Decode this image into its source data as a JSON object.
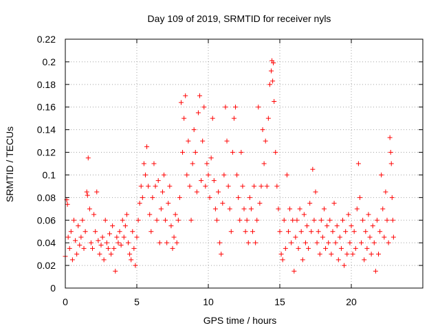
{
  "chart_data": {
    "type": "scatter",
    "title": "Day 109 of 2019, SRMTID for receiver nyls",
    "xlabel": "GPS time / hours",
    "ylabel": "SRMTID / TECUs",
    "xlim": [
      0,
      25
    ],
    "ylim": [
      0,
      0.22
    ],
    "x_ticks": [
      0,
      5,
      10,
      15,
      20
    ],
    "x_tick_labels": [
      "0",
      "5",
      "10",
      "15",
      "20"
    ],
    "y_ticks": [
      0,
      0.02,
      0.04,
      0.06,
      0.08,
      0.1,
      0.12,
      0.14,
      0.16,
      0.18,
      0.2,
      0.22
    ],
    "y_tick_labels": [
      "0",
      "0.02",
      "0.04",
      "0.06",
      "0.08",
      "0.1",
      "0.12",
      "0.14",
      "0.16",
      "0.18",
      "0.2",
      "0.22"
    ],
    "grid": true,
    "marker": "+",
    "color": "#ff0000",
    "series": [
      {
        "name": "SRMTID",
        "points": [
          [
            0.0,
            0.028
          ],
          [
            0.1,
            0.078
          ],
          [
            0.15,
            0.074
          ],
          [
            0.2,
            0.045
          ],
          [
            0.3,
            0.035
          ],
          [
            0.4,
            0.05
          ],
          [
            0.5,
            0.025
          ],
          [
            0.6,
            0.06
          ],
          [
            0.7,
            0.042
          ],
          [
            0.8,
            0.03
          ],
          [
            0.9,
            0.055
          ],
          [
            1.0,
            0.038
          ],
          [
            1.1,
            0.045
          ],
          [
            1.2,
            0.06
          ],
          [
            1.3,
            0.035
          ],
          [
            1.4,
            0.05
          ],
          [
            1.5,
            0.085
          ],
          [
            1.55,
            0.082
          ],
          [
            1.6,
            0.115
          ],
          [
            1.7,
            0.07
          ],
          [
            1.8,
            0.04
          ],
          [
            1.9,
            0.035
          ],
          [
            2.0,
            0.065
          ],
          [
            2.1,
            0.05
          ],
          [
            2.2,
            0.085
          ],
          [
            2.3,
            0.042
          ],
          [
            2.4,
            0.03
          ],
          [
            2.5,
            0.038
          ],
          [
            2.6,
            0.045
          ],
          [
            2.7,
            0.025
          ],
          [
            2.8,
            0.06
          ],
          [
            2.9,
            0.04
          ],
          [
            3.0,
            0.035
          ],
          [
            3.1,
            0.048
          ],
          [
            3.2,
            0.03
          ],
          [
            3.3,
            0.055
          ],
          [
            3.4,
            0.035
          ],
          [
            3.5,
            0.015
          ],
          [
            3.6,
            0.045
          ],
          [
            3.7,
            0.04
          ],
          [
            3.8,
            0.05
          ],
          [
            3.9,
            0.038
          ],
          [
            4.0,
            0.06
          ],
          [
            4.1,
            0.045
          ],
          [
            4.2,
            0.055
          ],
          [
            4.3,
            0.065
          ],
          [
            4.4,
            0.04
          ],
          [
            4.5,
            0.03
          ],
          [
            4.6,
            0.025
          ],
          [
            4.7,
            0.05
          ],
          [
            4.8,
            0.035
          ],
          [
            4.9,
            0.02
          ],
          [
            5.0,
            0.045
          ],
          [
            5.1,
            0.06
          ],
          [
            5.2,
            0.075
          ],
          [
            5.3,
            0.09
          ],
          [
            5.4,
            0.08
          ],
          [
            5.5,
            0.11
          ],
          [
            5.6,
            0.1
          ],
          [
            5.7,
            0.125
          ],
          [
            5.8,
            0.09
          ],
          [
            5.9,
            0.065
          ],
          [
            6.0,
            0.05
          ],
          [
            6.1,
            0.08
          ],
          [
            6.2,
            0.11
          ],
          [
            6.3,
            0.09
          ],
          [
            6.4,
            0.06
          ],
          [
            6.5,
            0.095
          ],
          [
            6.6,
            0.04
          ],
          [
            6.7,
            0.07
          ],
          [
            6.8,
            0.085
          ],
          [
            6.9,
            0.1
          ],
          [
            7.0,
            0.06
          ],
          [
            7.1,
            0.04
          ],
          [
            7.2,
            0.075
          ],
          [
            7.3,
            0.09
          ],
          [
            7.4,
            0.055
          ],
          [
            7.5,
            0.035
          ],
          [
            7.6,
            0.045
          ],
          [
            7.7,
            0.065
          ],
          [
            7.8,
            0.04
          ],
          [
            7.9,
            0.06
          ],
          [
            8.0,
            0.08
          ],
          [
            8.1,
            0.164
          ],
          [
            8.2,
            0.12
          ],
          [
            8.3,
            0.15
          ],
          [
            8.4,
            0.17
          ],
          [
            8.5,
            0.1
          ],
          [
            8.6,
            0.13
          ],
          [
            8.7,
            0.09
          ],
          [
            8.8,
            0.06
          ],
          [
            8.9,
            0.11
          ],
          [
            9.0,
            0.14
          ],
          [
            9.1,
            0.12
          ],
          [
            9.2,
            0.085
          ],
          [
            9.3,
            0.155
          ],
          [
            9.4,
            0.17
          ],
          [
            9.5,
            0.095
          ],
          [
            9.6,
            0.13
          ],
          [
            9.7,
            0.16
          ],
          [
            9.8,
            0.09
          ],
          [
            9.9,
            0.11
          ],
          [
            10.0,
            0.1
          ],
          [
            10.1,
            0.08
          ],
          [
            10.2,
            0.115
          ],
          [
            10.3,
            0.15
          ],
          [
            10.4,
            0.095
          ],
          [
            10.5,
            0.07
          ],
          [
            10.6,
            0.06
          ],
          [
            10.7,
            0.085
          ],
          [
            10.8,
            0.04
          ],
          [
            10.9,
            0.03
          ],
          [
            11.0,
            0.075
          ],
          [
            11.1,
            0.1
          ],
          [
            11.2,
            0.16
          ],
          [
            11.3,
            0.13
          ],
          [
            11.4,
            0.09
          ],
          [
            11.5,
            0.07
          ],
          [
            11.6,
            0.05
          ],
          [
            11.7,
            0.12
          ],
          [
            11.8,
            0.15
          ],
          [
            11.9,
            0.16
          ],
          [
            12.0,
            0.1
          ],
          [
            12.1,
            0.08
          ],
          [
            12.2,
            0.06
          ],
          [
            12.3,
            0.12
          ],
          [
            12.4,
            0.09
          ],
          [
            12.5,
            0.07
          ],
          [
            12.6,
            0.05
          ],
          [
            12.7,
            0.06
          ],
          [
            12.8,
            0.04
          ],
          [
            12.9,
            0.08
          ],
          [
            13.0,
            0.07
          ],
          [
            13.1,
            0.05
          ],
          [
            13.2,
            0.09
          ],
          [
            13.3,
            0.04
          ],
          [
            13.4,
            0.06
          ],
          [
            13.5,
            0.16
          ],
          [
            13.6,
            0.075
          ],
          [
            13.7,
            0.09
          ],
          [
            13.8,
            0.14
          ],
          [
            13.9,
            0.11
          ],
          [
            14.0,
            0.13
          ],
          [
            14.1,
            0.09
          ],
          [
            14.2,
            0.15
          ],
          [
            14.3,
            0.18
          ],
          [
            14.4,
            0.192
          ],
          [
            14.45,
            0.201
          ],
          [
            14.5,
            0.183
          ],
          [
            14.55,
            0.199
          ],
          [
            14.6,
            0.165
          ],
          [
            14.7,
            0.12
          ],
          [
            14.8,
            0.09
          ],
          [
            14.9,
            0.07
          ],
          [
            15.0,
            0.05
          ],
          [
            15.1,
            0.03
          ],
          [
            15.2,
            0.025
          ],
          [
            15.3,
            0.06
          ],
          [
            15.4,
            0.035
          ],
          [
            15.5,
            0.1
          ],
          [
            15.6,
            0.05
          ],
          [
            15.7,
            0.07
          ],
          [
            15.8,
            0.04
          ],
          [
            15.9,
            0.06
          ],
          [
            16.0,
            0.015
          ],
          [
            16.1,
            0.045
          ],
          [
            16.2,
            0.06
          ],
          [
            16.3,
            0.035
          ],
          [
            16.4,
            0.07
          ],
          [
            16.5,
            0.05
          ],
          [
            16.6,
            0.025
          ],
          [
            16.7,
            0.065
          ],
          [
            16.8,
            0.04
          ],
          [
            16.9,
            0.055
          ],
          [
            17.0,
            0.035
          ],
          [
            17.1,
            0.075
          ],
          [
            17.2,
            0.05
          ],
          [
            17.3,
            0.105
          ],
          [
            17.4,
            0.06
          ],
          [
            17.5,
            0.085
          ],
          [
            17.6,
            0.04
          ],
          [
            17.7,
            0.05
          ],
          [
            17.8,
            0.03
          ],
          [
            17.9,
            0.06
          ],
          [
            18.0,
            0.045
          ],
          [
            18.1,
            0.07
          ],
          [
            18.2,
            0.035
          ],
          [
            18.3,
            0.055
          ],
          [
            18.4,
            0.04
          ],
          [
            18.5,
            0.06
          ],
          [
            18.6,
            0.03
          ],
          [
            18.7,
            0.05
          ],
          [
            18.8,
            0.075
          ],
          [
            18.9,
            0.04
          ],
          [
            19.0,
            0.055
          ],
          [
            19.1,
            0.025
          ],
          [
            19.2,
            0.045
          ],
          [
            19.3,
            0.035
          ],
          [
            19.4,
            0.06
          ],
          [
            19.5,
            0.02
          ],
          [
            19.6,
            0.05
          ],
          [
            19.7,
            0.03
          ],
          [
            19.8,
            0.065
          ],
          [
            19.9,
            0.04
          ],
          [
            20.0,
            0.055
          ],
          [
            20.1,
            0.03
          ],
          [
            20.2,
            0.05
          ],
          [
            20.3,
            0.035
          ],
          [
            20.4,
            0.07
          ],
          [
            20.5,
            0.11
          ],
          [
            20.6,
            0.08
          ],
          [
            20.7,
            0.04
          ],
          [
            20.8,
            0.06
          ],
          [
            20.9,
            0.025
          ],
          [
            21.0,
            0.05
          ],
          [
            21.1,
            0.035
          ],
          [
            21.2,
            0.065
          ],
          [
            21.3,
            0.045
          ],
          [
            21.4,
            0.03
          ],
          [
            21.5,
            0.055
          ],
          [
            21.6,
            0.04
          ],
          [
            21.7,
            0.015
          ],
          [
            21.8,
            0.06
          ],
          [
            21.9,
            0.03
          ],
          [
            22.0,
            0.05
          ],
          [
            22.1,
            0.1
          ],
          [
            22.2,
            0.07
          ],
          [
            22.3,
            0.045
          ],
          [
            22.4,
            0.085
          ],
          [
            22.5,
            0.06
          ],
          [
            22.6,
            0.04
          ],
          [
            22.7,
            0.133
          ],
          [
            22.75,
            0.12
          ],
          [
            22.8,
            0.11
          ],
          [
            22.85,
            0.08
          ],
          [
            22.9,
            0.06
          ],
          [
            22.95,
            0.045
          ]
        ]
      }
    ]
  }
}
